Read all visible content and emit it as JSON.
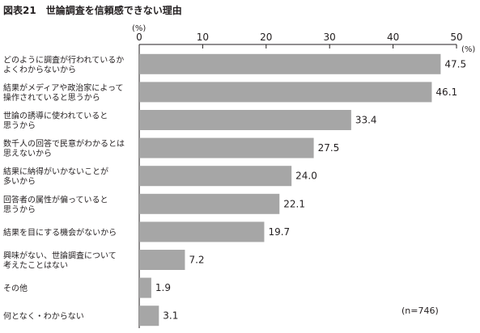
{
  "chart_data": {
    "type": "bar",
    "orientation": "horizontal",
    "title": "図表21　世論調査を信頼感できない理由",
    "unit_left": "(%)",
    "unit_right": "(%)",
    "note": "(n=746)",
    "xlim": [
      0,
      50
    ],
    "ticks": [
      0,
      10,
      20,
      30,
      40,
      50
    ],
    "categories": [
      [
        "どのように調査が行われているか",
        "よくわからないから"
      ],
      [
        "結果がメディアや政治家によって",
        "操作されていると思うから"
      ],
      [
        "世論の誘導に使われていると",
        "思うから"
      ],
      [
        "数千人の回答で民意がわかるとは",
        "思えないから"
      ],
      [
        "結果に納得がいかないことが",
        "多いから"
      ],
      [
        "回答者の属性が偏っていると",
        "思うから"
      ],
      [
        "結果を目にする機会がないから"
      ],
      [
        "興味がない、世論調査について",
        "考えたことはない"
      ],
      [
        "その他"
      ],
      [
        "何となく・わからない"
      ]
    ],
    "values": [
      47.5,
      46.1,
      33.4,
      27.5,
      24.0,
      22.1,
      19.7,
      7.2,
      1.9,
      3.1
    ],
    "value_labels": [
      "47.5",
      "46.1",
      "33.4",
      "27.5",
      "24.0",
      "22.1",
      "19.7",
      "7.2",
      "1.9",
      "3.1"
    ],
    "bar_color": "#a6a6a6",
    "grid": false
  }
}
